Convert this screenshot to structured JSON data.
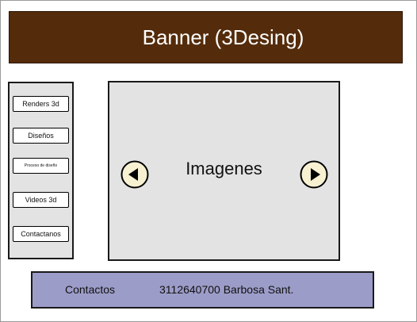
{
  "banner": {
    "title": "Banner (3Desing)"
  },
  "sidebar": {
    "items": [
      {
        "label": "Renders 3d"
      },
      {
        "label": "Diseños"
      },
      {
        "label": "Proceso de diseño"
      },
      {
        "label": "Videos 3d"
      },
      {
        "label": "Contactanos"
      }
    ]
  },
  "viewer": {
    "label": "Imagenes",
    "prev_icon": "arrow-left-circle-icon",
    "next_icon": "arrow-right-circle-icon"
  },
  "footer": {
    "label": "Contactos",
    "info": "3112640700 Barbosa Sant."
  },
  "colors": {
    "banner": "#542c0b",
    "panel": "#e3e3e3",
    "footer": "#9c9cc9",
    "arrow_fill": "#f7f1d2"
  }
}
